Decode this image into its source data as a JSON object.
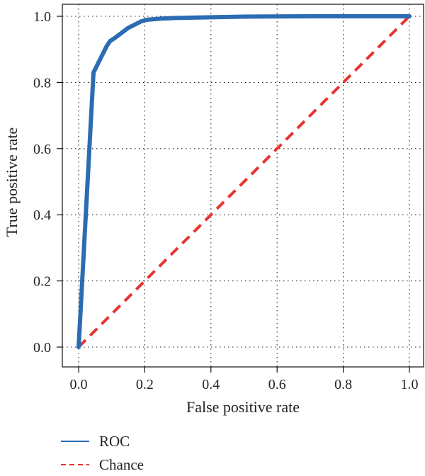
{
  "chart_data": {
    "type": "line",
    "title": "",
    "xlabel": "False positive rate",
    "ylabel": "True positive rate",
    "xlim": [
      0.0,
      1.0
    ],
    "ylim": [
      0.0,
      1.0
    ],
    "xticks": [
      "0.0",
      "0.2",
      "0.4",
      "0.6",
      "0.8",
      "1.0"
    ],
    "yticks": [
      "0.0",
      "0.2",
      "0.4",
      "0.6",
      "0.8",
      "1.0"
    ],
    "grid": true,
    "legend_position": "bottom-left",
    "series": [
      {
        "name": "ROC",
        "style": "solid",
        "color": "#2b6cb3",
        "x": [
          0.0,
          0.045,
          0.06,
          0.075,
          0.085,
          0.095,
          0.11,
          0.13,
          0.15,
          0.17,
          0.19,
          0.21,
          0.25,
          0.3,
          0.4,
          0.5,
          0.7,
          1.0
        ],
        "y": [
          0.0,
          0.83,
          0.86,
          0.89,
          0.91,
          0.925,
          0.935,
          0.95,
          0.965,
          0.975,
          0.985,
          0.99,
          0.993,
          0.995,
          0.997,
          0.999,
          1.0,
          1.0
        ]
      },
      {
        "name": "Chance",
        "style": "dashed",
        "color": "#e8332e",
        "x": [
          0.0,
          1.0
        ],
        "y": [
          0.0,
          1.0
        ]
      }
    ]
  }
}
